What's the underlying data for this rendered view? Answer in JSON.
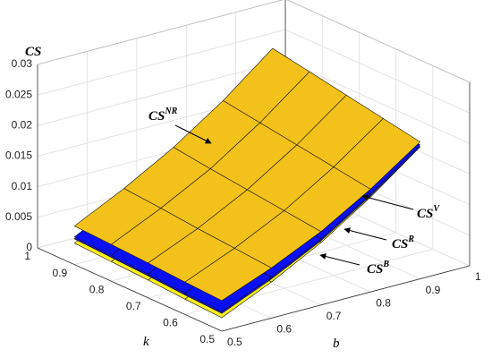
{
  "chart_data": {
    "type": "surface",
    "xlabel": "b",
    "ylabel": "k",
    "zlabel": "CS",
    "xlim": [
      0.5,
      1
    ],
    "ylim": [
      0.5,
      1
    ],
    "zlim": [
      0,
      0.03
    ],
    "xticks": [
      0.5,
      0.6,
      0.7,
      0.8,
      0.9,
      1
    ],
    "yticks": [
      0.5,
      0.6,
      0.7,
      0.8,
      0.9,
      1
    ],
    "zticks": [
      0,
      0.005,
      0.01,
      0.015,
      0.02,
      0.025,
      0.03
    ],
    "grid": true,
    "x": [
      0.5,
      0.6,
      0.7,
      0.8,
      0.9
    ],
    "y": [
      0.5,
      0.6,
      0.7,
      0.8,
      0.9
    ],
    "series": [
      {
        "name": "CS",
        "name_sup": "B",
        "color": "#f7ef1c",
        "z": [
          [
            0.0022,
            0.0059,
            0.0102,
            0.0155,
            0.0216
          ],
          [
            0.0025,
            0.0064,
            0.0109,
            0.0164,
            0.0227
          ],
          [
            0.0029,
            0.0069,
            0.0116,
            0.0173,
            0.0238
          ],
          [
            0.0032,
            0.0075,
            0.0123,
            0.0182,
            0.0249
          ],
          [
            0.0035,
            0.008,
            0.0131,
            0.0191,
            0.026
          ]
        ]
      },
      {
        "name": "CS",
        "name_sup": "R",
        "color": "#1616e6",
        "z": [
          [
            0.0029,
            0.0064,
            0.0105,
            0.0157,
            0.0216
          ],
          [
            0.0032,
            0.0069,
            0.0112,
            0.0166,
            0.0227
          ],
          [
            0.0036,
            0.0074,
            0.0119,
            0.0175,
            0.0238
          ],
          [
            0.0039,
            0.008,
            0.0126,
            0.0184,
            0.0249
          ],
          [
            0.0042,
            0.0085,
            0.0134,
            0.0193,
            0.026
          ]
        ]
      },
      {
        "name": "CS",
        "name_sup": "V",
        "color": "#0a10f5",
        "z": [
          [
            0.0032,
            0.0067,
            0.0108,
            0.016,
            0.0219
          ],
          [
            0.0035,
            0.0072,
            0.0115,
            0.0169,
            0.023
          ],
          [
            0.0039,
            0.0077,
            0.0122,
            0.0178,
            0.0241
          ],
          [
            0.0042,
            0.0083,
            0.0129,
            0.0187,
            0.0252
          ],
          [
            0.0045,
            0.0088,
            0.0137,
            0.0196,
            0.0263
          ]
        ]
      },
      {
        "name": "CS",
        "name_sup": "NR",
        "color": "#f2c21a",
        "z": [
          [
            0.005,
            0.0082,
            0.012,
            0.0168,
            0.0224
          ],
          [
            0.0053,
            0.0087,
            0.0127,
            0.0177,
            0.0235
          ],
          [
            0.0057,
            0.0092,
            0.0134,
            0.0186,
            0.0246
          ],
          [
            0.006,
            0.0098,
            0.0141,
            0.0195,
            0.0257
          ],
          [
            0.0063,
            0.0103,
            0.0149,
            0.0204,
            0.0268
          ]
        ]
      }
    ]
  }
}
